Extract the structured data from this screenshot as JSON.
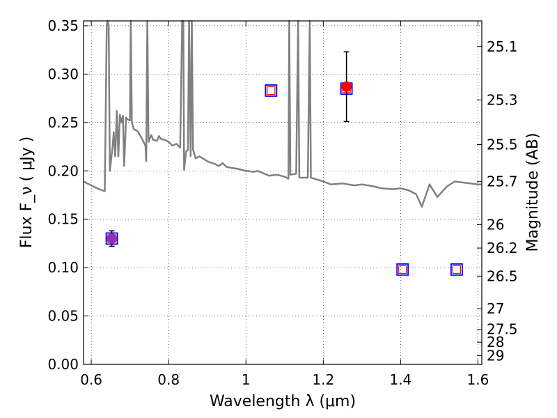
{
  "chart_data": {
    "type": "scatter",
    "xlabel": "Wavelength  λ (μm)",
    "ylabel": "Flux  F_ν  ( μJy )",
    "ylabel_right": "Magnitude (AB)",
    "xlim": [
      0.58,
      1.61
    ],
    "ylim": [
      0.0,
      0.355
    ],
    "x_ticks": [
      0.6,
      0.8,
      1.0,
      1.2,
      1.4,
      1.6
    ],
    "x_tick_labels": [
      "0.6",
      "0.8",
      "1",
      "1.2",
      "1.4",
      "1.6"
    ],
    "y_ticks": [
      0.0,
      0.05,
      0.1,
      0.15,
      0.2,
      0.25,
      0.3,
      0.35
    ],
    "y_tick_labels": [
      "0.00",
      "0.05",
      "0.10",
      "0.15",
      "0.20",
      "0.25",
      "0.30",
      "0.35"
    ],
    "right_ticks": [
      {
        "flux": 0.3285,
        "label": "25.1"
      },
      {
        "flux": 0.2732,
        "label": "25.3"
      },
      {
        "flux": 0.2272,
        "label": "25.5"
      },
      {
        "flux": 0.1889,
        "label": "25.7"
      },
      {
        "flux": 0.1445,
        "label": "26"
      },
      {
        "flux": 0.1202,
        "label": "26.2"
      },
      {
        "flux": 0.0912,
        "label": "26.5"
      },
      {
        "flux": 0.0575,
        "label": "27"
      },
      {
        "flux": 0.0363,
        "label": "27.5"
      },
      {
        "flux": 0.0229,
        "label": "28"
      },
      {
        "flux": 0.0091,
        "label": "29"
      }
    ],
    "grid": true,
    "colors": {
      "sed": "#808080",
      "model_square": "#0000ff",
      "inner_square": "#ff0000",
      "detection": "#ff0000",
      "detection_optical": "#9b30a0",
      "errorbar": "#000000"
    },
    "series": [
      {
        "type": "line",
        "points": [
          [
            0.58,
            0.189
          ],
          [
            0.6,
            0.185
          ],
          [
            0.62,
            0.181
          ],
          [
            0.635,
            0.179
          ],
          [
            0.64,
            0.35
          ],
          [
            0.642,
            0.355
          ],
          [
            0.645,
            0.35
          ],
          [
            0.648,
            0.2
          ],
          [
            0.652,
            0.214
          ],
          [
            0.655,
            0.225
          ],
          [
            0.658,
            0.24
          ],
          [
            0.662,
            0.215
          ],
          [
            0.666,
            0.262
          ],
          [
            0.67,
            0.215
          ],
          [
            0.674,
            0.258
          ],
          [
            0.678,
            0.25
          ],
          [
            0.682,
            0.257
          ],
          [
            0.685,
            0.205
          ],
          [
            0.69,
            0.255
          ],
          [
            0.695,
            0.253
          ],
          [
            0.7,
            0.252
          ],
          [
            0.702,
            0.355
          ],
          [
            0.705,
            0.25
          ],
          [
            0.71,
            0.243
          ],
          [
            0.72,
            0.241
          ],
          [
            0.73,
            0.234
          ],
          [
            0.74,
            0.226
          ],
          [
            0.742,
            0.21
          ],
          [
            0.745,
            0.355
          ],
          [
            0.748,
            0.23
          ],
          [
            0.755,
            0.237
          ],
          [
            0.76,
            0.232
          ],
          [
            0.77,
            0.231
          ],
          [
            0.775,
            0.236
          ],
          [
            0.78,
            0.233
          ],
          [
            0.79,
            0.232
          ],
          [
            0.8,
            0.23
          ],
          [
            0.81,
            0.226
          ],
          [
            0.82,
            0.228
          ],
          [
            0.83,
            0.224
          ],
          [
            0.835,
            0.355
          ],
          [
            0.838,
            0.355
          ],
          [
            0.84,
            0.201
          ],
          [
            0.845,
            0.22
          ],
          [
            0.85,
            0.222
          ],
          [
            0.853,
            0.355
          ],
          [
            0.857,
            0.215
          ],
          [
            0.86,
            0.355
          ],
          [
            0.863,
            0.222
          ],
          [
            0.87,
            0.213
          ],
          [
            0.88,
            0.215
          ],
          [
            0.9,
            0.21
          ],
          [
            0.92,
            0.207
          ],
          [
            0.93,
            0.205
          ],
          [
            0.94,
            0.208
          ],
          [
            0.95,
            0.204
          ],
          [
            0.98,
            0.202
          ],
          [
            1.0,
            0.2
          ],
          [
            1.02,
            0.199
          ],
          [
            1.03,
            0.2
          ],
          [
            1.06,
            0.195
          ],
          [
            1.08,
            0.196
          ],
          [
            1.1,
            0.194
          ],
          [
            1.11,
            0.192
          ],
          [
            1.112,
            0.355
          ],
          [
            1.115,
            0.196
          ],
          [
            1.13,
            0.197
          ],
          [
            1.135,
            0.355
          ],
          [
            1.138,
            0.193
          ],
          [
            1.16,
            0.193
          ],
          [
            1.165,
            0.355
          ],
          [
            1.168,
            0.193
          ],
          [
            1.2,
            0.189
          ],
          [
            1.22,
            0.186
          ],
          [
            1.25,
            0.187
          ],
          [
            1.28,
            0.185
          ],
          [
            1.3,
            0.186
          ],
          [
            1.33,
            0.184
          ],
          [
            1.35,
            0.182
          ],
          [
            1.38,
            0.181
          ],
          [
            1.4,
            0.182
          ],
          [
            1.42,
            0.18
          ],
          [
            1.44,
            0.176
          ],
          [
            1.455,
            0.163
          ],
          [
            1.475,
            0.186
          ],
          [
            1.495,
            0.173
          ],
          [
            1.52,
            0.184
          ],
          [
            1.54,
            0.189
          ],
          [
            1.56,
            0.188
          ],
          [
            1.58,
            0.187
          ],
          [
            1.6,
            0.186
          ],
          [
            1.61,
            0.186
          ]
        ]
      },
      {
        "type": "model-squares",
        "points": [
          [
            0.653,
            0.13
          ],
          [
            1.065,
            0.283
          ],
          [
            1.26,
            0.285
          ],
          [
            1.405,
            0.098
          ],
          [
            1.545,
            0.098
          ]
        ]
      },
      {
        "type": "detections",
        "points": [
          {
            "x": 0.653,
            "y": 0.13,
            "err": 0.008,
            "kind": "optical"
          },
          {
            "x": 1.26,
            "y": 0.287,
            "err": 0.036,
            "kind": "nir"
          }
        ]
      }
    ]
  }
}
